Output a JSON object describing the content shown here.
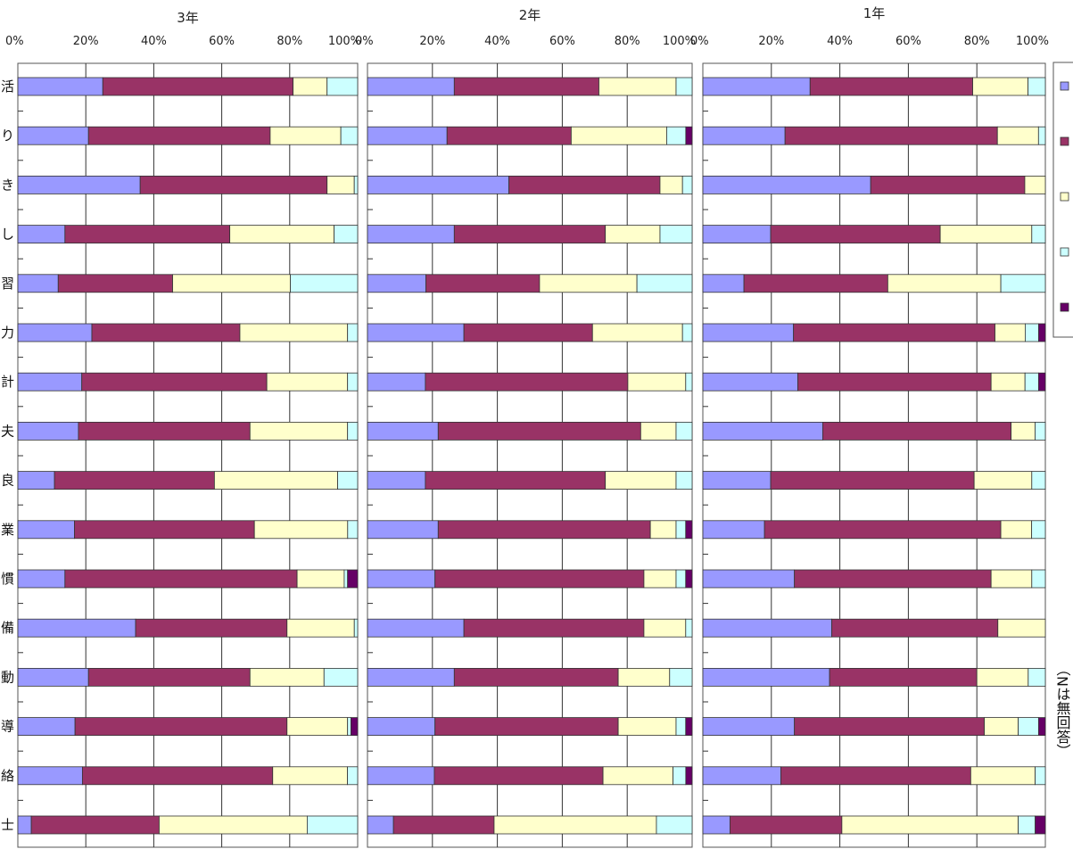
{
  "colors": [
    "#9999ff",
    "#993366",
    "#ffffcc",
    "#ccffff",
    "#660066"
  ],
  "legend_note": "（Nは無回答）",
  "chart_data": {
    "type": "bar",
    "orientation": "horizontal",
    "stacked": "percent",
    "xlim": [
      0,
      100
    ],
    "x_ticks": [
      "0%",
      "20%",
      "40%",
      "60%",
      "80%",
      "100%"
    ],
    "grid": true,
    "legend": "right",
    "row_labels": [
      "活",
      "り",
      "き",
      "し",
      "習",
      "力",
      "計",
      "夫",
      "良",
      "業",
      "慣",
      "備",
      "動",
      "導",
      "絡",
      "士"
    ],
    "panels": [
      {
        "title": "3年",
        "rows": [
          [
            25,
            56,
            10,
            9,
            0
          ],
          [
            21,
            54,
            21,
            5,
            0
          ],
          [
            36,
            55,
            8,
            1,
            0
          ],
          [
            14,
            49,
            31,
            7,
            0
          ],
          [
            12,
            34,
            35,
            20,
            0
          ],
          [
            22,
            44,
            32,
            3,
            0
          ],
          [
            19,
            55,
            24,
            3,
            0
          ],
          [
            18,
            51,
            29,
            3,
            0
          ],
          [
            11,
            48,
            37,
            6,
            0
          ],
          [
            17,
            54,
            28,
            3,
            0
          ],
          [
            14,
            69,
            14,
            1,
            3
          ],
          [
            35,
            45,
            20,
            1,
            0
          ],
          [
            21,
            48,
            22,
            10,
            0
          ],
          [
            17,
            63,
            18,
            1,
            2
          ],
          [
            19,
            56,
            22,
            3,
            0
          ],
          [
            4,
            38,
            44,
            15,
            0
          ]
        ]
      },
      {
        "title": "2年",
        "rows": [
          [
            27,
            45,
            24,
            5,
            0
          ],
          [
            25,
            39,
            30,
            6,
            2
          ],
          [
            44,
            47,
            7,
            3,
            0
          ],
          [
            27,
            47,
            17,
            10,
            0
          ],
          [
            18,
            35,
            30,
            17,
            0
          ],
          [
            30,
            40,
            28,
            3,
            0
          ],
          [
            18,
            63,
            18,
            2,
            0
          ],
          [
            22,
            63,
            11,
            5,
            0
          ],
          [
            18,
            56,
            22,
            5,
            0
          ],
          [
            22,
            66,
            8,
            3,
            2
          ],
          [
            21,
            65,
            10,
            3,
            2
          ],
          [
            30,
            56,
            13,
            2,
            0
          ],
          [
            27,
            51,
            16,
            7,
            0
          ],
          [
            21,
            57,
            18,
            3,
            2
          ],
          [
            21,
            53,
            22,
            4,
            2
          ],
          [
            8,
            31,
            50,
            11,
            0
          ]
        ]
      },
      {
        "title": "1年",
        "rows": [
          [
            31,
            47,
            16,
            5,
            0
          ],
          [
            24,
            62,
            12,
            2,
            0
          ],
          [
            49,
            45,
            6,
            0,
            0
          ],
          [
            20,
            50,
            27,
            4,
            0
          ],
          [
            12,
            42,
            33,
            13,
            0
          ],
          [
            27,
            60,
            9,
            4,
            2
          ],
          [
            28,
            57,
            10,
            4,
            2
          ],
          [
            35,
            55,
            7,
            3,
            0
          ],
          [
            20,
            60,
            17,
            4,
            0
          ],
          [
            18,
            69,
            9,
            4,
            0
          ],
          [
            27,
            58,
            12,
            4,
            0
          ],
          [
            38,
            49,
            14,
            0,
            0
          ],
          [
            37,
            43,
            15,
            5,
            0
          ],
          [
            27,
            56,
            10,
            6,
            2
          ],
          [
            23,
            56,
            19,
            3,
            0
          ],
          [
            8,
            33,
            52,
            5,
            3
          ]
        ]
      }
    ]
  }
}
